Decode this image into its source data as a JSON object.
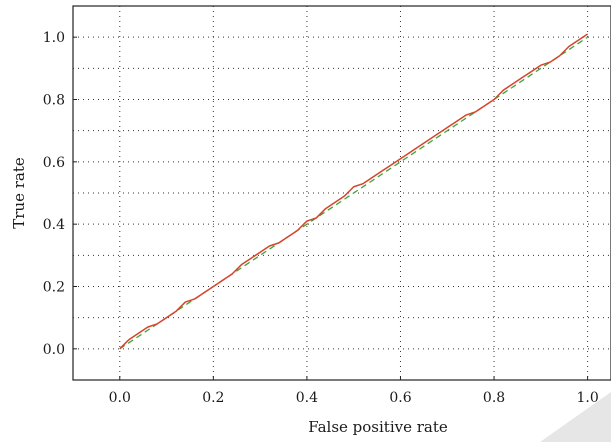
{
  "chart_data": {
    "type": "line",
    "title": "",
    "xlabel": "False positive rate",
    "ylabel": "True rate",
    "xlim": [
      -0.1,
      1.05
    ],
    "ylim": [
      -0.1,
      1.1
    ],
    "x_ticks": [
      "0.0",
      "0.2",
      "0.4",
      "0.6",
      "0.8",
      "1.0"
    ],
    "y_ticks": [
      "0.0",
      "0.2",
      "0.4",
      "0.6",
      "0.8",
      "1.0"
    ],
    "grid": true,
    "grid_style": "dotted",
    "colors": {
      "roc": "#d9432a",
      "diagonal": "#3aa63a"
    },
    "series": [
      {
        "style": "solid",
        "x": [
          0.0,
          0.02,
          0.04,
          0.06,
          0.08,
          0.1,
          0.12,
          0.14,
          0.16,
          0.18,
          0.2,
          0.22,
          0.24,
          0.26,
          0.28,
          0.3,
          0.32,
          0.34,
          0.36,
          0.38,
          0.4,
          0.42,
          0.44,
          0.46,
          0.48,
          0.5,
          0.52,
          0.54,
          0.56,
          0.58,
          0.6,
          0.62,
          0.64,
          0.66,
          0.68,
          0.7,
          0.72,
          0.74,
          0.76,
          0.78,
          0.8,
          0.82,
          0.84,
          0.86,
          0.88,
          0.9,
          0.92,
          0.94,
          0.96,
          0.98,
          1.0
        ],
        "y": [
          0.0,
          0.03,
          0.05,
          0.07,
          0.08,
          0.1,
          0.12,
          0.15,
          0.16,
          0.18,
          0.2,
          0.22,
          0.24,
          0.27,
          0.29,
          0.31,
          0.33,
          0.34,
          0.36,
          0.38,
          0.41,
          0.42,
          0.45,
          0.47,
          0.49,
          0.52,
          0.53,
          0.55,
          0.57,
          0.59,
          0.61,
          0.63,
          0.65,
          0.67,
          0.69,
          0.71,
          0.73,
          0.75,
          0.76,
          0.78,
          0.8,
          0.83,
          0.85,
          0.87,
          0.89,
          0.91,
          0.92,
          0.94,
          0.97,
          0.99,
          1.01
        ]
      },
      {
        "style": "dashed",
        "x": [
          0.0,
          1.0
        ],
        "y": [
          0.0,
          1.0
        ]
      }
    ]
  }
}
